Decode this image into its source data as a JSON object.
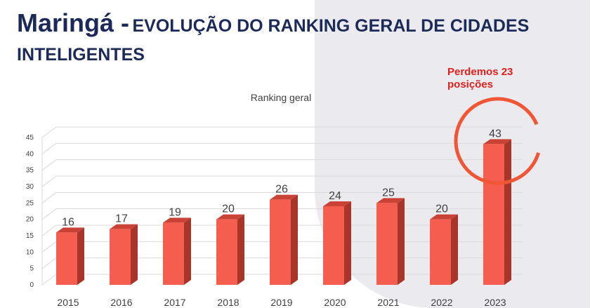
{
  "title": {
    "main": "Maringá -",
    "subtitle_line1": "EVOLUÇÃO DO RANKING GERAL DE CIDADES",
    "subtitle_line2": "INTELIGENTES"
  },
  "annotation": {
    "line1": "Perdemos 23",
    "line2": "posições"
  },
  "colors": {
    "bar": "#f55e4e",
    "bar_side": "#a8352a",
    "bar_top": "#c94235",
    "highlight_circle": "#f05536",
    "title": "#1c2a5a",
    "annotation": "#e0201c"
  },
  "chart_data": {
    "type": "bar",
    "title": "Ranking geral",
    "categories": [
      "2015",
      "2016",
      "2017",
      "2018",
      "2019",
      "2020",
      "2021",
      "2022",
      "2023"
    ],
    "values": [
      16,
      17,
      19,
      20,
      26,
      24,
      25,
      20,
      43
    ],
    "ylim": [
      0,
      45
    ],
    "yticks": [
      0,
      5,
      10,
      15,
      20,
      25,
      30,
      35,
      40,
      45
    ],
    "xlabel": "",
    "ylabel": "",
    "grid": true,
    "style": "3d-column",
    "data_labels": true
  }
}
